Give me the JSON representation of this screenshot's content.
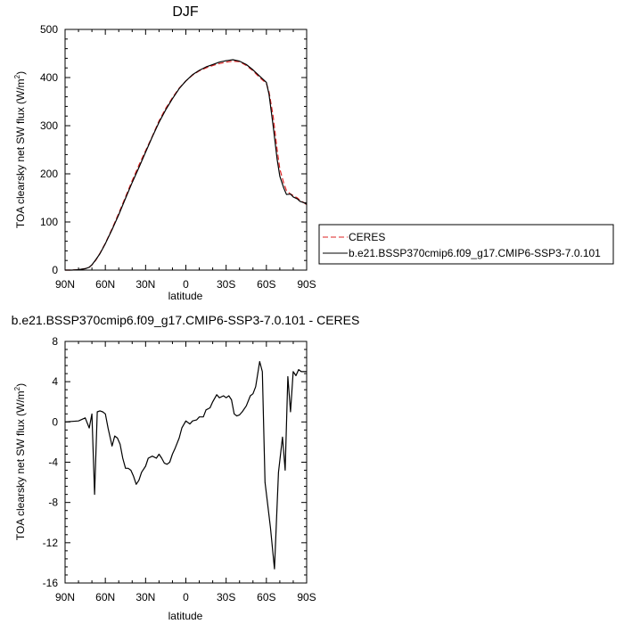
{
  "chart_data": [
    {
      "type": "line",
      "title": "DJF",
      "xlabel": "latitude",
      "ylabel": "TOA clearsky net SW flux (W/m",
      "ylabel_sup": "2",
      "ylabel_close": ")",
      "xlim": [
        90,
        -90
      ],
      "ylim": [
        0,
        500
      ],
      "xticks": [
        90,
        60,
        30,
        0,
        -30,
        -60,
        -90
      ],
      "xtick_labels": [
        "90N",
        "60N",
        "30N",
        "0",
        "30S",
        "60S",
        "90S"
      ],
      "yticks": [
        0,
        100,
        200,
        300,
        400,
        500
      ],
      "ytick_labels": [
        "0",
        "100",
        "200",
        "300",
        "400",
        "500"
      ],
      "legend": {
        "placement": "right"
      },
      "series": [
        {
          "name": "CERES",
          "color": "#dd2222",
          "dash": "dashed",
          "x": [
            90,
            85,
            80,
            75,
            72,
            70,
            67,
            64,
            60,
            55,
            50,
            45,
            40,
            35,
            30,
            25,
            20,
            15,
            10,
            5,
            0,
            -5,
            -10,
            -15,
            -20,
            -25,
            -30,
            -35,
            -40,
            -45,
            -50,
            -55,
            -60,
            -62,
            -65,
            -68,
            -70,
            -73,
            -75,
            -78,
            -80,
            -83,
            -85,
            -88,
            -90
          ],
          "y": [
            0,
            0,
            1,
            3,
            6,
            11,
            21,
            35,
            56,
            86,
            118,
            152,
            186,
            218,
            248,
            278,
            310,
            336,
            358,
            378,
            393,
            405,
            414,
            420,
            425,
            429,
            432,
            434,
            433,
            425,
            414,
            400,
            388,
            370,
            320,
            250,
            210,
            180,
            165,
            158,
            155,
            150,
            145,
            140,
            136
          ]
        },
        {
          "name": "b.e21.BSSP370cmip6.f09_g17.CMIP6-SSP3-7.0.101",
          "color": "#000000",
          "dash": "solid",
          "x": [
            90,
            85,
            80,
            75,
            72,
            70,
            67,
            64,
            60,
            55,
            50,
            45,
            40,
            35,
            30,
            25,
            20,
            15,
            10,
            5,
            0,
            -5,
            -10,
            -15,
            -20,
            -25,
            -30,
            -35,
            -40,
            -45,
            -50,
            -55,
            -60,
            -62,
            -65,
            -68,
            -70,
            -73,
            -75,
            -78,
            -80,
            -83,
            -85,
            -88,
            -90
          ],
          "y": [
            0,
            0,
            1,
            3,
            6,
            11,
            22,
            34,
            55,
            84,
            115,
            149,
            182,
            213,
            245,
            277,
            307,
            333,
            356,
            377,
            393,
            406,
            415,
            422,
            427,
            432,
            435,
            437,
            434,
            427,
            416,
            403,
            390,
            365,
            300,
            230,
            195,
            170,
            157,
            158,
            152,
            148,
            143,
            140,
            137
          ]
        }
      ]
    },
    {
      "type": "line",
      "title": "b.e21.BSSP370cmip6.f09_g17.CMIP6-SSP3-7.0.101 - CERES",
      "xlabel": "latitude",
      "ylabel": "TOA clearsky net SW flux (W/m",
      "ylabel_sup": "2",
      "ylabel_close": ")",
      "xlim": [
        90,
        -90
      ],
      "ylim": [
        -16,
        8
      ],
      "xticks": [
        90,
        60,
        30,
        0,
        -30,
        -60,
        -90
      ],
      "xtick_labels": [
        "90N",
        "60N",
        "30N",
        "0",
        "30S",
        "60S",
        "90S"
      ],
      "yticks": [
        -16,
        -12,
        -8,
        -4,
        0,
        4,
        8
      ],
      "ytick_labels": [
        "-16",
        "-12",
        "-8",
        "-4",
        "0",
        "4",
        "8"
      ],
      "series": [
        {
          "color": "#000000",
          "x": [
            90,
            80,
            75,
            72,
            70,
            68,
            66,
            64,
            62,
            60,
            58,
            55,
            53,
            51,
            49,
            47,
            45,
            43,
            41,
            39,
            37,
            35,
            33,
            30,
            28,
            25,
            22,
            20,
            18,
            16,
            14,
            12,
            10,
            8,
            5,
            3,
            0,
            -3,
            -5,
            -8,
            -10,
            -13,
            -15,
            -18,
            -20,
            -23,
            -25,
            -28,
            -30,
            -32,
            -34,
            -36,
            -38,
            -40,
            -42,
            -45,
            -48,
            -50,
            -52,
            -55,
            -57,
            -59,
            -61,
            -63,
            -66,
            -69,
            -72,
            -74,
            -76,
            -78,
            -80,
            -82,
            -84,
            -86,
            -88,
            -90
          ],
          "y": [
            0,
            0.1,
            0.4,
            -0.6,
            0.8,
            -7.2,
            1,
            1.1,
            1,
            0.8,
            -0.6,
            -2.4,
            -1.4,
            -1.6,
            -2.2,
            -3.6,
            -4.6,
            -4.6,
            -4.8,
            -5.4,
            -6.2,
            -5.8,
            -5.0,
            -4.4,
            -3.6,
            -3.4,
            -3.6,
            -3.2,
            -3.6,
            -4.1,
            -4.2,
            -4.0,
            -3.2,
            -2.6,
            -1.6,
            -0.6,
            0.1,
            -0.2,
            0.1,
            0.2,
            0.5,
            0.5,
            1.2,
            1.4,
            2.0,
            2.7,
            2.4,
            2.6,
            2.4,
            2.6,
            2.2,
            0.8,
            0.6,
            0.7,
            1.0,
            1.6,
            2.6,
            2.8,
            3.5,
            6.0,
            5.0,
            -6.0,
            -8.2,
            -10.5,
            -14.6,
            -5.0,
            -1.5,
            -4.8,
            4.5,
            1.0,
            5.0,
            4.6,
            5.2,
            5.0,
            5.0,
            5.0
          ]
        }
      ]
    }
  ]
}
